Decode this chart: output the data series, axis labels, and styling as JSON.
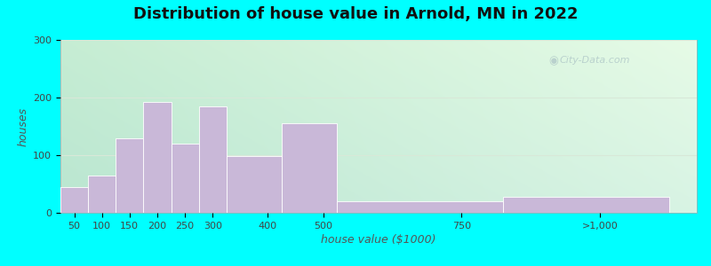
{
  "title": "Distribution of house value in Arnold, MN in 2022",
  "xlabel": "house value ($1000)",
  "ylabel": "houses",
  "bar_color": "#c9b8d8",
  "bar_edgecolor": "#ffffff",
  "bg_colors": [
    "#cff0e8",
    "#e8f5e4",
    "#f4fbf4"
  ],
  "outer_color": "#00ffff",
  "ylim": [
    0,
    300
  ],
  "yticks": [
    0,
    100,
    200,
    300
  ],
  "xtick_labels": [
    "50",
    "100",
    "150",
    "200",
    "250",
    "300",
    "400",
    "500",
    "750",
    ">1,000"
  ],
  "xtick_positions": [
    50,
    100,
    150,
    200,
    250,
    300,
    400,
    500,
    750,
    1000
  ],
  "values": [
    45,
    65,
    130,
    193,
    120,
    185,
    98,
    155,
    20,
    28
  ],
  "bar_lefts": [
    25,
    75,
    125,
    175,
    225,
    275,
    325,
    425,
    525,
    825
  ],
  "bar_widths": [
    50,
    50,
    50,
    50,
    50,
    50,
    100,
    100,
    300,
    300
  ],
  "xlim": [
    25,
    1175
  ],
  "title_fontsize": 13,
  "axis_label_fontsize": 9,
  "tick_fontsize": 8,
  "watermark_text": "City-Data.com",
  "watermark_color": "#b0c8c8",
  "grid_color": "#d8e8d8",
  "grid_linewidth": 0.8
}
